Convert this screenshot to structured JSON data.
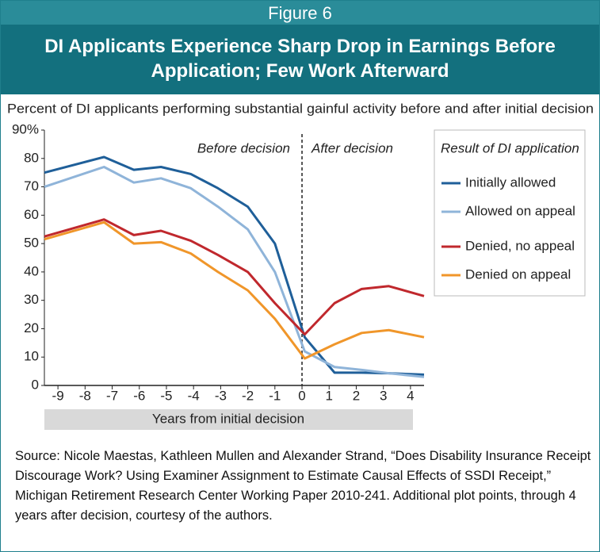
{
  "figure_label": "Figure 6",
  "title": "DI Applicants Experience Sharp Drop in Earnings Before Application; Few Work Afterward",
  "source": "Source: Nicole Maestas, Kathleen Mullen and Alexander Strand, “Does Disability Insurance Receipt Discourage Work? Using Examiner Assignment to Estimate Causal Effects of SSDI Receipt,” Michigan Retirement Research Center Working Paper 2010-241.  Additional plot points, through 4 years after decision, courtesy of the authors.",
  "chart_data": {
    "type": "line",
    "subtitle": "Percent of DI applicants performing substantial gainful activity before and after initial decision",
    "x_label": "Years from initial decision",
    "annotations": [
      "Before decision",
      "After decision"
    ],
    "legend_title": "Result of DI application",
    "legend": "right",
    "x": [
      -9.5,
      -7.3,
      -6.2,
      -5.2,
      -4.1,
      -3.1,
      -2.0,
      -1.0,
      0.1,
      1.2,
      2.2,
      3.2,
      4.5
    ],
    "series": [
      {
        "name": "Initially allowed",
        "color": "#1f5f99",
        "values": [
          75,
          80.5,
          76,
          77,
          74.5,
          69.5,
          63,
          50,
          17,
          4.5,
          4.5,
          4.3,
          3.8
        ]
      },
      {
        "name": "Allowed on appeal",
        "color": "#8fb4d9",
        "values": [
          70,
          77,
          71.5,
          73,
          69.5,
          63,
          55,
          40,
          12,
          6.5,
          5.5,
          4.3,
          3
        ]
      },
      {
        "name": "Denied, no appeal",
        "color": "#c0282d",
        "values": [
          52.5,
          58.5,
          53,
          54.5,
          51,
          46,
          40,
          29,
          18,
          29,
          34,
          35,
          31.5
        ]
      },
      {
        "name": "Denied on appeal",
        "color": "#f0962a",
        "values": [
          51.5,
          57.5,
          50,
          50.5,
          46.5,
          40,
          33.5,
          23.5,
          9.5,
          14.5,
          18.5,
          19.5,
          17
        ]
      }
    ],
    "xlim": [
      -9.5,
      4.5
    ],
    "xticks": [
      -9,
      -8,
      -7,
      -6,
      -5,
      -4,
      -3,
      -2,
      -1,
      0,
      1,
      2,
      3,
      4
    ],
    "ylim": [
      0,
      90
    ],
    "yticks": [
      0,
      10,
      20,
      30,
      40,
      50,
      60,
      70,
      80,
      {
        "value": 90,
        "label": "90%"
      }
    ]
  }
}
